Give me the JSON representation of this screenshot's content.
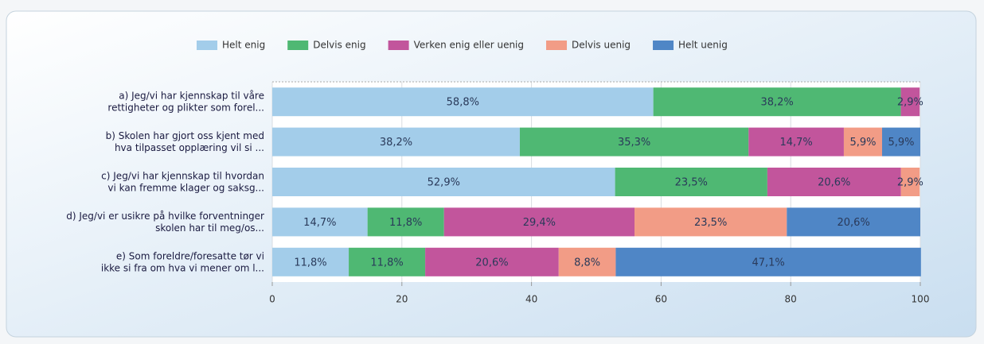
{
  "chart_data": {
    "type": "stacked-bar-horizontal",
    "categories": [
      [
        "a) Jeg/vi har kjennskap til våre",
        "rettigheter og plikter som forel..."
      ],
      [
        "b) Skolen har gjort oss kjent med",
        "hva tilpasset opplæring vil si ..."
      ],
      [
        "c) Jeg/vi har kjennskap til hvordan",
        "vi kan fremme klager og saksg..."
      ],
      [
        "d) Jeg/vi er usikre på hvilke forventninger",
        "skolen har til meg/os..."
      ],
      [
        "e) Som foreldre/foresatte tør vi",
        "ikke si fra om hva vi mener om l..."
      ]
    ],
    "series": [
      {
        "name": "Helt enig",
        "color": "#a3cdea",
        "values": [
          58.8,
          38.2,
          52.9,
          14.7,
          11.8
        ],
        "value_labels": [
          "58,8%",
          "38,2%",
          "52,9%",
          "14,7%",
          "11,8%"
        ]
      },
      {
        "name": "Delvis enig",
        "color": "#4fb873",
        "values": [
          38.2,
          35.3,
          23.5,
          11.8,
          11.8
        ],
        "value_labels": [
          "38,2%",
          "35,3%",
          "23,5%",
          "11,8%",
          "11,8%"
        ]
      },
      {
        "name": "Verken enig eller uenig",
        "color": "#c2559c",
        "values": [
          2.9,
          14.7,
          20.6,
          29.4,
          20.6
        ],
        "value_labels": [
          "2,9%",
          "14,7%",
          "20,6%",
          "29,4%",
          "20,6%"
        ]
      },
      {
        "name": "Delvis uenig",
        "color": "#f29c86",
        "values": [
          null,
          5.9,
          2.9,
          23.5,
          8.8
        ],
        "value_labels": [
          null,
          "5,9%",
          "2,9%",
          "23,5%",
          "8,8%"
        ]
      },
      {
        "name": "Helt uenig",
        "color": "#4f86c6",
        "values": [
          null,
          5.9,
          null,
          20.6,
          47.1
        ],
        "value_labels": [
          null,
          "5,9%",
          null,
          "20,6%",
          "47,1%"
        ]
      }
    ],
    "xlim": [
      0,
      100
    ],
    "xticks": [
      0,
      20,
      40,
      60,
      80,
      100
    ],
    "grid": true,
    "legend": "top"
  }
}
